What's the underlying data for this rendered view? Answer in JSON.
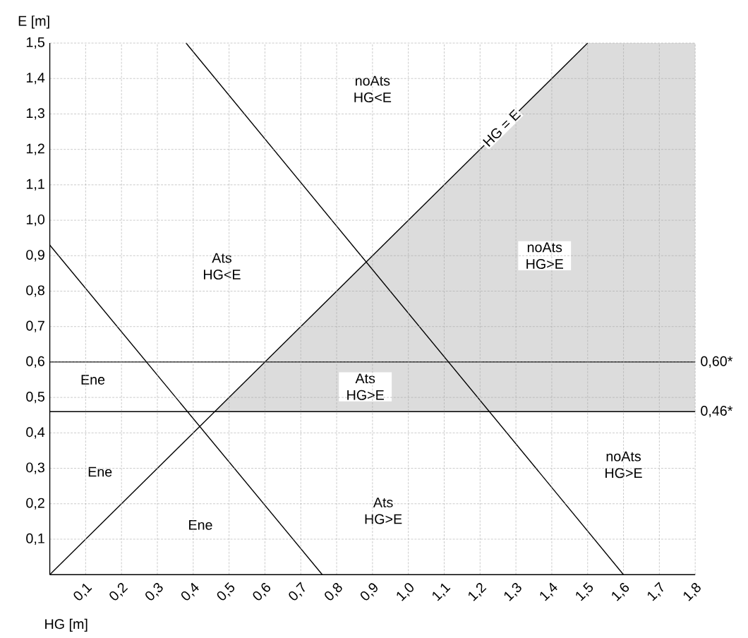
{
  "chart_data": {
    "type": "line",
    "xlabel": "HG [m]",
    "ylabel": "E [m]",
    "xlim": [
      0,
      1.8
    ],
    "ylim": [
      0,
      1.5
    ],
    "xticks": [
      {
        "value": 0.1,
        "label": "0,1"
      },
      {
        "value": 0.2,
        "label": "0,2"
      },
      {
        "value": 0.3,
        "label": "0,3"
      },
      {
        "value": 0.4,
        "label": "0,4"
      },
      {
        "value": 0.5,
        "label": "0,5"
      },
      {
        "value": 0.6,
        "label": "0,6"
      },
      {
        "value": 0.7,
        "label": "0,7"
      },
      {
        "value": 0.8,
        "label": "0,8"
      },
      {
        "value": 0.9,
        "label": "0,9"
      },
      {
        "value": 1.0,
        "label": "1,0"
      },
      {
        "value": 1.1,
        "label": "1,1"
      },
      {
        "value": 1.2,
        "label": "1,2"
      },
      {
        "value": 1.3,
        "label": "1,3"
      },
      {
        "value": 1.4,
        "label": "1,4"
      },
      {
        "value": 1.5,
        "label": "1,5"
      },
      {
        "value": 1.6,
        "label": "1,6"
      },
      {
        "value": 1.7,
        "label": "1,7"
      },
      {
        "value": 1.8,
        "label": "1,8"
      }
    ],
    "yticks": [
      {
        "value": 0.1,
        "label": "0,1"
      },
      {
        "value": 0.2,
        "label": "0,2"
      },
      {
        "value": 0.3,
        "label": "0,3"
      },
      {
        "value": 0.4,
        "label": "0,4"
      },
      {
        "value": 0.5,
        "label": "0,5"
      },
      {
        "value": 0.6,
        "label": "0,6"
      },
      {
        "value": 0.7,
        "label": "0,7"
      },
      {
        "value": 0.8,
        "label": "0,8"
      },
      {
        "value": 0.9,
        "label": "0,9"
      },
      {
        "value": 1.0,
        "label": "1,0"
      },
      {
        "value": 1.1,
        "label": "1,1"
      },
      {
        "value": 1.2,
        "label": "1,2"
      },
      {
        "value": 1.3,
        "label": "1,3"
      },
      {
        "value": 1.4,
        "label": "1,4"
      },
      {
        "value": 1.5,
        "label": "1,5"
      }
    ],
    "grid": true,
    "marker": "none",
    "line_style": "solid",
    "series": [
      {
        "type": "area",
        "color": "#dcdcdc",
        "x": [
          0.46,
          1.5,
          1.8,
          1.8,
          0.46
        ],
        "values": [
          0.46,
          1.5,
          1.5,
          0.46,
          0.46
        ]
      },
      {
        "name": "HG = E",
        "color": "#000000",
        "x": [
          0,
          1.5
        ],
        "values": [
          0,
          1.5
        ]
      },
      {
        "color": "#000000",
        "x": [
          0,
          0.76
        ],
        "values": [
          0.93,
          0
        ]
      },
      {
        "color": "#000000",
        "x": [
          0.38,
          1.6
        ],
        "values": [
          1.5,
          0
        ]
      }
    ],
    "ref_lines": [
      {
        "axis": "y",
        "value": 0.6,
        "label": "0,60*",
        "color": "#000000"
      },
      {
        "axis": "y",
        "value": 0.46,
        "label": "0,46*",
        "color": "#000000"
      }
    ],
    "annotations": [
      "noAts HG<E",
      "Ats HG<E",
      "noAts HG>E",
      "Ats HG>E",
      "Ene",
      "Ene",
      "Ene",
      "noAts HG>E",
      "Ats HG>E"
    ]
  }
}
